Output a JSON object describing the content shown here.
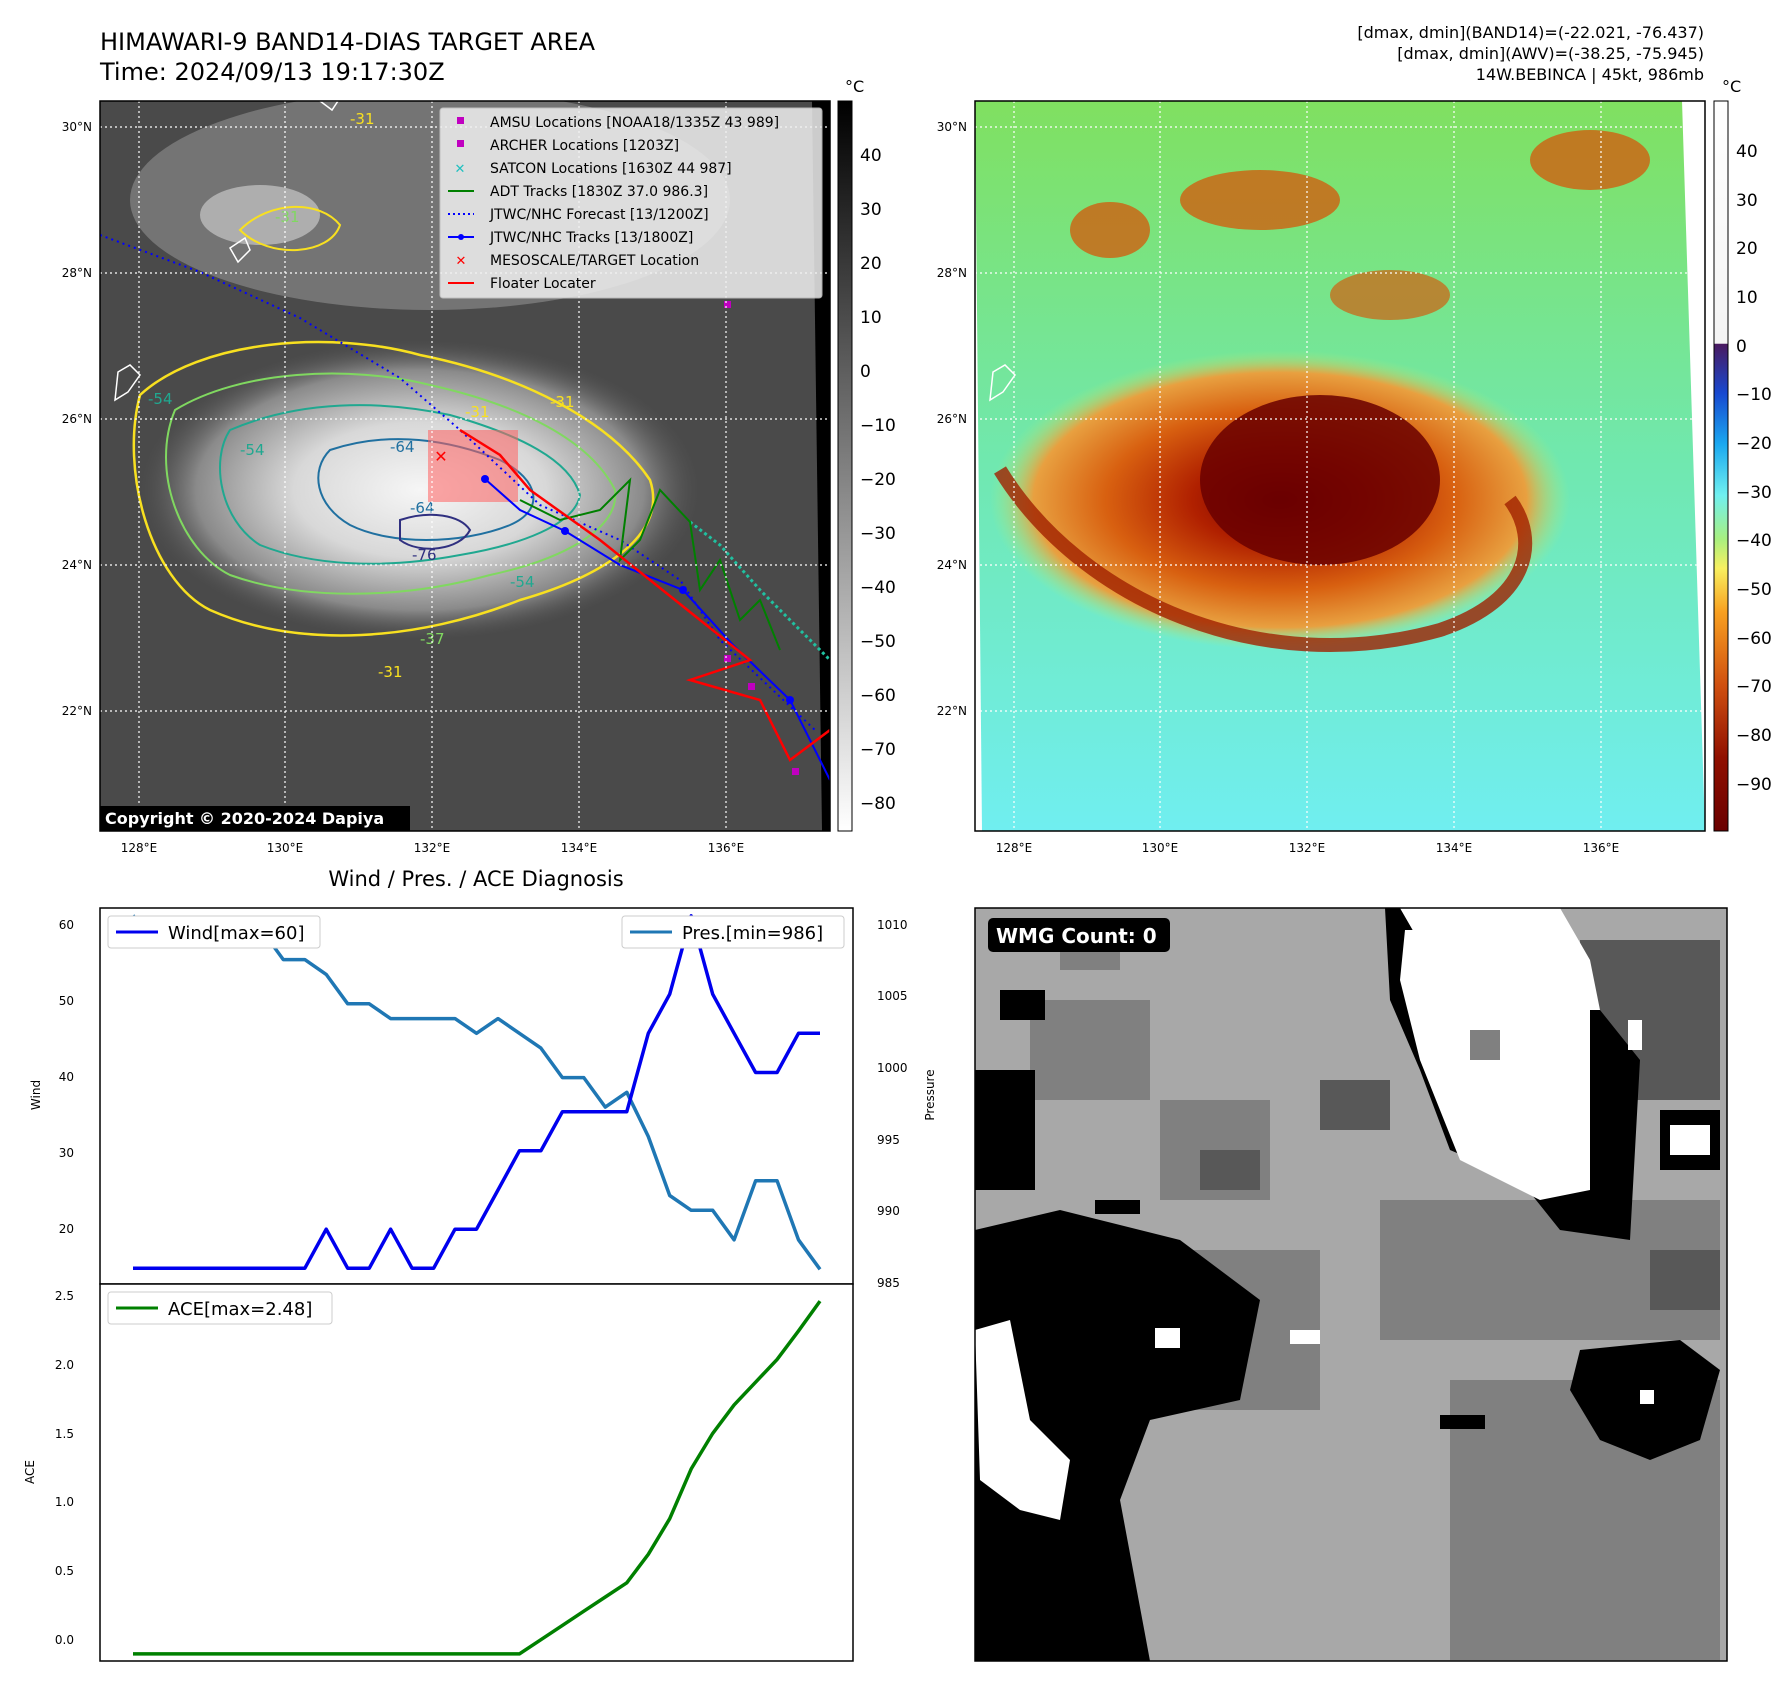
{
  "header": {
    "title_line1": "HIMAWARI-9 BAND14-DIAS TARGET AREA",
    "title_line2": "Time: 2024/09/13 19:17:30Z",
    "info_line1": "[dmax, dmin](BAND14)=(-22.021, -76.437)",
    "info_line2": "[dmax, dmin](AWV)=(-38.25, -75.945)",
    "info_line3": "14W.BEBINCA | 45kt, 986mb"
  },
  "map": {
    "lon_ticks": [
      "128°E",
      "130°E",
      "132°E",
      "134°E",
      "136°E"
    ],
    "lat_ticks": [
      "30°N",
      "28°N",
      "26°N",
      "24°N",
      "22°N"
    ],
    "copyright": "Copyright © 2020-2024 Dapiya",
    "contour_labels": [
      "-31",
      "-31",
      "-31",
      "-31",
      "-31",
      "-54",
      "-54",
      "-54",
      "-64",
      "-64",
      "-76",
      "-37"
    ],
    "legend": [
      {
        "label": "AMSU Locations [NOAA18/1335Z 43 989]",
        "color": "#c000c0"
      },
      {
        "label": "ARCHER Locations [1203Z]",
        "color": "#c000c0"
      },
      {
        "label": "SATCON Locations [1630Z 44 987]",
        "color": "#20c0c0"
      },
      {
        "label": "ADT Tracks [1830Z 37.0 986.3]",
        "color": "#008000"
      },
      {
        "label": "JTWC/NHC Forecast [13/1200Z]",
        "color": "#0000ff"
      },
      {
        "label": "JTWC/NHC Tracks [13/1800Z]",
        "color": "#0000ff"
      },
      {
        "label": "MESOSCALE/TARGET Location",
        "color": "#ff0000"
      },
      {
        "label": "Floater Locater",
        "color": "#ff0000"
      }
    ]
  },
  "colorbar_gray": {
    "unit": "°C",
    "ticks": [
      "40",
      "30",
      "20",
      "10",
      "0",
      "−10",
      "−20",
      "−30",
      "−40",
      "−50",
      "−60",
      "−70",
      "−80"
    ]
  },
  "colorbar_color": {
    "unit": "°C",
    "ticks": [
      "40",
      "30",
      "20",
      "10",
      "0",
      "−10",
      "−20",
      "−30",
      "−40",
      "−50",
      "−60",
      "−70",
      "−80",
      "−90"
    ]
  },
  "diagnosis": {
    "title": "Wind / Pres. / ACE Diagnosis",
    "wind_label": "Wind[max=60]",
    "pres_label": "Pres.[min=986]",
    "ace_label": "ACE[max=2.48]",
    "ylabel_wind": "Wind",
    "ylabel_pres": "Pressure",
    "ylabel_ace": "ACE",
    "wind_ticks": [
      "60",
      "50",
      "40",
      "30",
      "20"
    ],
    "pres_ticks": [
      "1010",
      "1005",
      "1000",
      "995",
      "990",
      "985"
    ],
    "ace_ticks": [
      "2.5",
      "2.0",
      "1.5",
      "1.0",
      "0.5",
      "0.0"
    ],
    "colors": {
      "wind": "#0000ee",
      "pres": "#1f77b4",
      "ace": "#008000"
    }
  },
  "chart_data": [
    {
      "type": "line",
      "title": "Wind / Pres. / ACE Diagnosis",
      "x": [
        0,
        1,
        2,
        3,
        4,
        5,
        6,
        7,
        8,
        9,
        10,
        11,
        12,
        13,
        14,
        15,
        16,
        17,
        18,
        19,
        20,
        21,
        22,
        23,
        24,
        25,
        26,
        27,
        28,
        29,
        30,
        31,
        32
      ],
      "series": [
        {
          "name": "Wind[max=60]",
          "axis": "left",
          "values": [
            15,
            15,
            15,
            15,
            15,
            15,
            15,
            15,
            15,
            20,
            15,
            15,
            20,
            15,
            15,
            20,
            20,
            25,
            30,
            30,
            35,
            35,
            35,
            35,
            45,
            50,
            60,
            50,
            45,
            40,
            40,
            45,
            45
          ]
        },
        {
          "name": "Pres.[min=986]",
          "axis": "right",
          "values": [
            1010,
            1008,
            1008,
            1008,
            1008,
            1009,
            1009,
            1007,
            1007,
            1006,
            1004,
            1004,
            1003,
            1003,
            1003,
            1003,
            1002,
            1003,
            1002,
            1001,
            999,
            999,
            997,
            998,
            995,
            991,
            990,
            990,
            988,
            992,
            992,
            988,
            986
          ]
        }
      ],
      "ylim_left": [
        13,
        61
      ],
      "ylim_right": [
        985,
        1010.5
      ]
    },
    {
      "type": "line",
      "x": [
        0,
        1,
        2,
        3,
        4,
        5,
        6,
        7,
        8,
        9,
        10,
        11,
        12,
        13,
        14,
        15,
        16,
        17,
        18,
        19,
        20,
        21,
        22,
        23,
        24,
        25,
        26,
        27,
        28,
        29,
        30,
        31,
        32
      ],
      "series": [
        {
          "name": "ACE[max=2.48]",
          "values": [
            0,
            0,
            0,
            0,
            0,
            0,
            0,
            0,
            0,
            0,
            0,
            0,
            0,
            0,
            0,
            0,
            0,
            0,
            0,
            0.1,
            0.2,
            0.3,
            0.4,
            0.5,
            0.7,
            0.95,
            1.3,
            1.55,
            1.75,
            1.91,
            2.07,
            2.27,
            2.48
          ]
        }
      ],
      "ylim": [
        -0.05,
        2.6
      ]
    }
  ],
  "wmg": {
    "count_label": "WMG Count: 0"
  }
}
